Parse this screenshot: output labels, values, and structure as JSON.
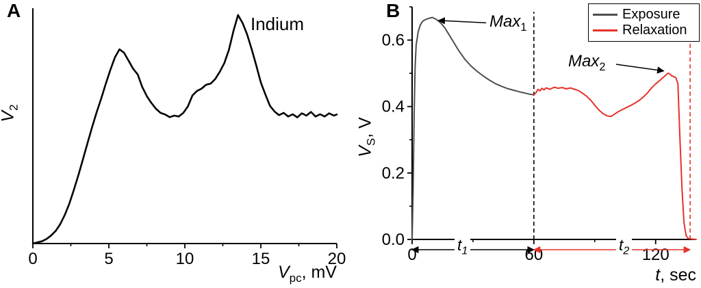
{
  "panel_a": {
    "label": "A",
    "annotation": "Indium",
    "xlabel": {
      "var": "V",
      "sub": "pc",
      "unit": ", mV"
    },
    "ylabel": {
      "var": "V",
      "sub": "2",
      "unit": ""
    }
  },
  "panel_b": {
    "label": "B",
    "xlabel": {
      "var": "t",
      "sub": "",
      "unit": ", sec"
    },
    "ylabel": {
      "var": "V",
      "sub": "S",
      "unit": ", V"
    },
    "legend": [
      {
        "label": "Exposure",
        "color": "#4d4d4d"
      },
      {
        "label": "Relaxation",
        "color": "#e63229"
      }
    ],
    "max1": {
      "var": "Max",
      "sub": "1"
    },
    "max2": {
      "var": "Max",
      "sub": "2"
    },
    "t1": {
      "var": "t",
      "sub": "1"
    },
    "t2": {
      "var": "t",
      "sub": "2"
    }
  },
  "chart_data": [
    {
      "type": "line",
      "panel": "A",
      "title": "",
      "xlabel": "V_pc, mV",
      "ylabel": "V_2",
      "xlim": [
        0,
        20
      ],
      "ylim": [
        0,
        1.03
      ],
      "xticks": [
        0,
        5,
        10,
        15,
        20
      ],
      "xtick_labels": [
        "0",
        "5",
        "10",
        "15",
        "20"
      ],
      "xticks_minor": [
        2.5,
        7.5,
        12.5,
        17.5
      ],
      "yticks": [],
      "ytick_labels": [],
      "yticks_minor": [],
      "grid": false,
      "annotation": "Indium",
      "series": [
        {
          "name": "Indium",
          "color": "#000000",
          "width": 2.6,
          "x": [
            0,
            0.3,
            0.6,
            0.9,
            1.2,
            1.5,
            1.8,
            2.1,
            2.4,
            2.7,
            3,
            3.3,
            3.6,
            3.9,
            4.2,
            4.5,
            4.8,
            5.1,
            5.4,
            5.7,
            6,
            6.3,
            6.6,
            6.9,
            7.2,
            7.5,
            7.8,
            8.1,
            8.4,
            8.7,
            9,
            9.3,
            9.6,
            9.9,
            10.2,
            10.5,
            10.8,
            11.1,
            11.4,
            11.7,
            12,
            12.3,
            12.6,
            12.9,
            13.2,
            13.5,
            13.8,
            14.1,
            14.4,
            14.7,
            15,
            15.3,
            15.6,
            15.9,
            16.2,
            16.5,
            16.8,
            17.1,
            17.4,
            17.7,
            18,
            18.3,
            18.6,
            18.9,
            19.2,
            19.5,
            19.8,
            20
          ],
          "y": [
            0,
            0.005,
            0.01,
            0.02,
            0.035,
            0.055,
            0.085,
            0.125,
            0.175,
            0.235,
            0.3,
            0.37,
            0.44,
            0.51,
            0.575,
            0.635,
            0.7,
            0.76,
            0.815,
            0.85,
            0.835,
            0.8,
            0.765,
            0.74,
            0.685,
            0.645,
            0.615,
            0.59,
            0.572,
            0.565,
            0.553,
            0.56,
            0.556,
            0.572,
            0.6,
            0.648,
            0.668,
            0.678,
            0.695,
            0.7,
            0.72,
            0.752,
            0.79,
            0.848,
            0.93,
            1,
            0.965,
            0.915,
            0.85,
            0.78,
            0.705,
            0.652,
            0.603,
            0.578,
            0.562,
            0.572,
            0.556,
            0.566,
            0.552,
            0.57,
            0.56,
            0.576,
            0.556,
            0.566,
            0.556,
            0.57,
            0.56,
            0.565
          ]
        }
      ]
    },
    {
      "type": "line",
      "panel": "B",
      "title": "",
      "xlabel": "t, sec",
      "ylabel": "V_S, V",
      "xlim": [
        0,
        140
      ],
      "ylim": [
        0,
        0.7
      ],
      "xticks": [
        0,
        60,
        120
      ],
      "xtick_labels": [
        "0",
        "60",
        "120"
      ],
      "xticks_minor": [
        30,
        90
      ],
      "yticks": [
        0,
        0.2,
        0.4,
        0.6
      ],
      "ytick_labels": [
        "0.0",
        "0.2",
        "0.4",
        "0.6"
      ],
      "yticks_minor": [
        0.1,
        0.3,
        0.5,
        0.7
      ],
      "grid": false,
      "legend_position": "top-right",
      "series": [
        {
          "name": "Exposure",
          "color": "#4d4d4d",
          "width": 2,
          "x": [
            0,
            0.5,
            1,
            1.5,
            2,
            3,
            4,
            5,
            6,
            8,
            10,
            12,
            14,
            16,
            18,
            20,
            23,
            26,
            29,
            32,
            35,
            38,
            41,
            44,
            47,
            50,
            53,
            56,
            58,
            60
          ],
          "y": [
            0,
            0.15,
            0.38,
            0.52,
            0.585,
            0.625,
            0.645,
            0.655,
            0.66,
            0.665,
            0.668,
            0.662,
            0.652,
            0.638,
            0.618,
            0.598,
            0.568,
            0.542,
            0.522,
            0.506,
            0.492,
            0.48,
            0.469,
            0.461,
            0.454,
            0.449,
            0.444,
            0.44,
            0.437,
            0.435
          ]
        },
        {
          "name": "Relaxation",
          "color": "#e63229",
          "width": 2,
          "x": [
            60,
            61,
            62,
            63,
            64,
            65,
            66,
            68,
            70,
            72,
            74,
            76,
            78,
            80,
            82,
            84,
            86,
            88,
            90,
            92,
            94,
            96,
            98,
            100,
            102,
            104,
            106,
            108,
            110,
            112,
            114,
            116,
            118,
            120,
            122,
            124,
            126,
            127,
            128,
            129,
            130,
            131,
            132,
            133,
            134,
            135,
            136,
            138,
            140
          ],
          "y": [
            0.435,
            0.441,
            0.452,
            0.447,
            0.455,
            0.45,
            0.456,
            0.452,
            0.458,
            0.455,
            0.457,
            0.453,
            0.456,
            0.452,
            0.448,
            0.44,
            0.431,
            0.419,
            0.404,
            0.39,
            0.379,
            0.372,
            0.37,
            0.378,
            0.386,
            0.392,
            0.398,
            0.404,
            0.411,
            0.419,
            0.429,
            0.441,
            0.456,
            0.468,
            0.478,
            0.489,
            0.5,
            0.498,
            0.492,
            0.49,
            0.486,
            0.468,
            0.3,
            0.15,
            0.05,
            0.012,
            0.003,
            0.001,
            0
          ]
        }
      ],
      "vlines": [
        {
          "x": 60,
          "v0": 0,
          "v1": 0.685,
          "color": "#000000",
          "dash": "6,4",
          "name": "exposure-end-dashed-line"
        },
        {
          "x": 137,
          "v0": 0,
          "v1": 0.7,
          "color": "#e63229",
          "dash": "6,4",
          "name": "relaxation-end-dashed-line"
        }
      ],
      "arrows": [
        {
          "x1": 36.5,
          "y1": 0.652,
          "x2": 13,
          "y2": 0.659,
          "color": "#000000",
          "heads": "end",
          "name": "max1-arrow"
        },
        {
          "x1": 100.5,
          "y1": 0.527,
          "x2": 124,
          "y2": 0.507,
          "color": "#000000",
          "heads": "end",
          "name": "max2-arrow"
        }
      ],
      "intervals": [
        {
          "from": 0,
          "to": 60,
          "v": -0.031,
          "color": "#000000",
          "name": "t1-interval-arrow"
        },
        {
          "from": 60,
          "to": 137,
          "v": -0.031,
          "color": "#e63229",
          "name": "t2-interval-arrow"
        }
      ],
      "annotations": [
        {
          "text": "Max_1",
          "x": 40,
          "y": 0.652
        },
        {
          "text": "Max_2",
          "x": 82,
          "y": 0.545
        }
      ]
    }
  ]
}
